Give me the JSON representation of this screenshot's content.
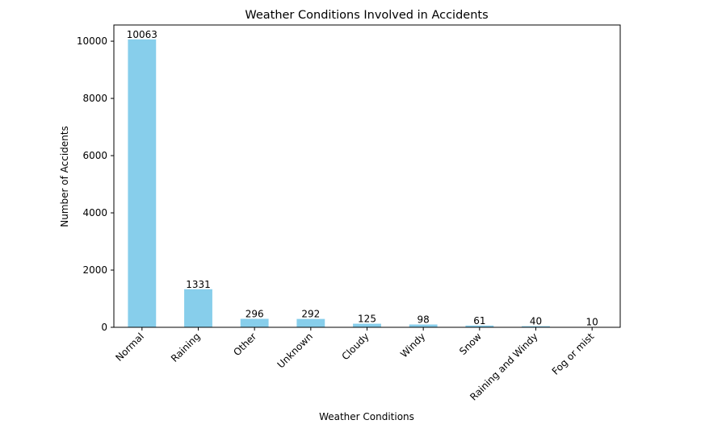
{
  "chart_data": {
    "type": "bar",
    "title": "Weather Conditions Involved in Accidents",
    "xlabel": "Weather Conditions",
    "ylabel": "Number of Accidents",
    "categories": [
      "Normal",
      "Raining",
      "Other",
      "Unknown",
      "Cloudy",
      "Windy",
      "Snow",
      "Raining and Windy",
      "Fog or mist"
    ],
    "values": [
      10063,
      1331,
      296,
      292,
      125,
      98,
      61,
      40,
      10
    ],
    "ylim": [
      0,
      10566
    ],
    "yticks": [
      0,
      2000,
      4000,
      6000,
      8000,
      10000
    ],
    "grid": false,
    "bar_color": "#87ceeb",
    "x_tick_rotation_deg": 45,
    "data_labels": true
  }
}
